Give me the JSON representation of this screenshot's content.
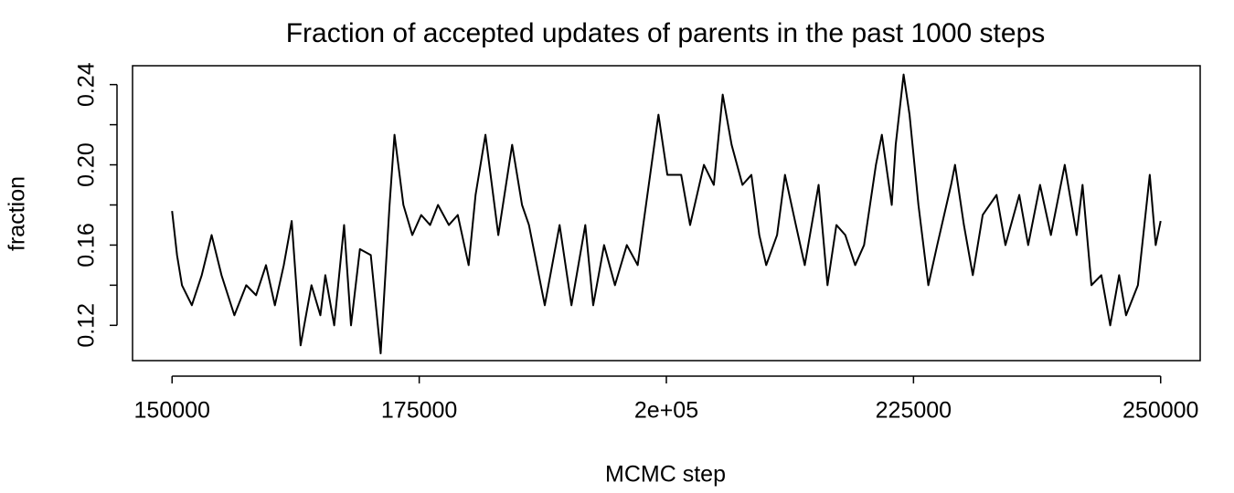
{
  "chart_data": {
    "type": "line",
    "title": "Fraction of accepted updates of parents in the past 1000 steps",
    "xlabel": "MCMC step",
    "ylabel": "fraction",
    "x": [
      150000,
      150500,
      151000,
      152000,
      153000,
      154000,
      155000,
      156300,
      157500,
      158500,
      159500,
      160400,
      161300,
      162100,
      163000,
      164100,
      165000,
      165500,
      166400,
      167400,
      168100,
      169000,
      170100,
      171100,
      172000,
      172500,
      173400,
      174300,
      175200,
      176100,
      176900,
      178000,
      178900,
      180000,
      180700,
      181700,
      183000,
      184400,
      185400,
      186100,
      187700,
      189200,
      190400,
      191800,
      192600,
      193700,
      194800,
      196000,
      197100,
      199200,
      200100,
      201500,
      202400,
      203800,
      204800,
      205700,
      206600,
      207700,
      208600,
      209400,
      210100,
      211200,
      212000,
      213100,
      214000,
      215400,
      216300,
      217200,
      218100,
      219100,
      220000,
      221200,
      221800,
      222800,
      223200,
      224000,
      224600,
      225500,
      226500,
      227400,
      228800,
      229200,
      230100,
      231000,
      232000,
      233400,
      234300,
      235700,
      236600,
      237800,
      238900,
      240300,
      241500,
      242100,
      243000,
      244000,
      244900,
      245800,
      246500,
      247700,
      248900,
      249500,
      250000
    ],
    "series": [
      {
        "name": "fraction",
        "color": "#000000",
        "values": [
          0.177,
          0.155,
          0.14,
          0.13,
          0.145,
          0.165,
          0.145,
          0.125,
          0.14,
          0.135,
          0.15,
          0.13,
          0.15,
          0.172,
          0.11,
          0.14,
          0.125,
          0.145,
          0.12,
          0.17,
          0.12,
          0.158,
          0.155,
          0.106,
          0.18,
          0.215,
          0.18,
          0.165,
          0.175,
          0.17,
          0.18,
          0.17,
          0.175,
          0.15,
          0.185,
          0.215,
          0.165,
          0.21,
          0.18,
          0.17,
          0.13,
          0.17,
          0.13,
          0.17,
          0.13,
          0.16,
          0.14,
          0.16,
          0.15,
          0.225,
          0.195,
          0.195,
          0.17,
          0.2,
          0.19,
          0.235,
          0.21,
          0.19,
          0.195,
          0.165,
          0.15,
          0.165,
          0.195,
          0.17,
          0.15,
          0.19,
          0.14,
          0.17,
          0.165,
          0.15,
          0.16,
          0.2,
          0.215,
          0.18,
          0.21,
          0.245,
          0.225,
          0.18,
          0.14,
          0.16,
          0.19,
          0.2,
          0.17,
          0.145,
          0.175,
          0.185,
          0.16,
          0.185,
          0.16,
          0.19,
          0.165,
          0.2,
          0.165,
          0.19,
          0.14,
          0.145,
          0.12,
          0.145,
          0.125,
          0.14,
          0.195,
          0.16,
          0.172
        ]
      }
    ],
    "xlim": [
      146000,
      254000
    ],
    "xticks": [
      150000,
      175000,
      {
        "value": 200000,
        "label": "2e+05"
      },
      225000,
      250000
    ],
    "ylim": [
      0.1024,
      0.2494
    ],
    "yticks": [
      0.12,
      0.16,
      {
        "value": 0.2,
        "label": "0.20"
      },
      0.24
    ],
    "yminor": [
      0.14,
      0.18,
      0.22
    ],
    "grid": false
  }
}
